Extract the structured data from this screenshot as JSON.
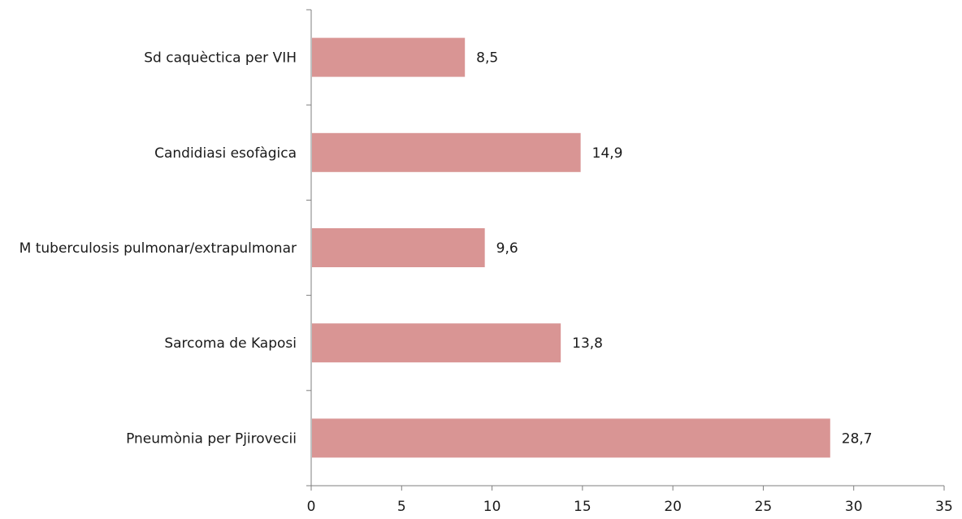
{
  "chart_data": {
    "type": "bar",
    "orientation": "horizontal",
    "categories": [
      "Sd caquèctica per VIH",
      "Candidiasi esofàgica",
      "M tuberculosis pulmonar/extrapulmonar",
      "Sarcoma de Kaposi",
      "Pneumònia per Pjirovecii"
    ],
    "values": [
      8.5,
      14.9,
      9.6,
      13.8,
      28.7
    ],
    "value_labels": [
      "8,5",
      "14,9",
      "9,6",
      "13,8",
      "28,7"
    ],
    "xlim": [
      0,
      35
    ],
    "xticks": [
      0,
      5,
      10,
      15,
      20,
      25,
      30,
      35
    ],
    "xtick_labels": [
      "0",
      "5",
      "10",
      "15",
      "20",
      "25",
      "30",
      "35"
    ],
    "grid": false,
    "legend": "none",
    "colors": {
      "bar": "#d99594",
      "axis": "#7f7f7f",
      "text": "#1a1a1a"
    }
  }
}
